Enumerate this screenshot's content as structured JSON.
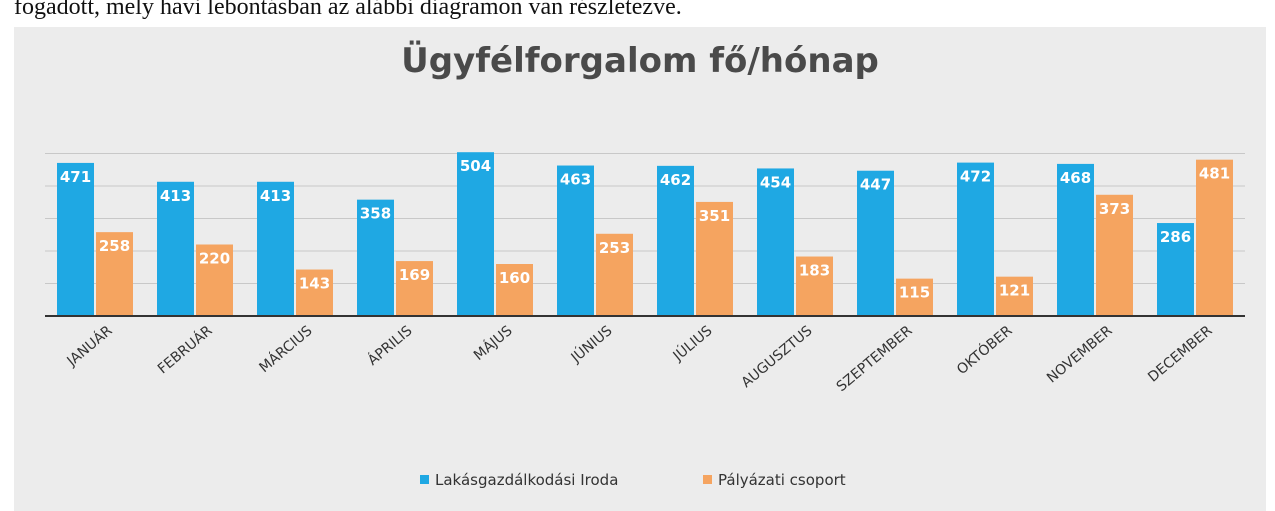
{
  "page_text": "fogadott, mely havi lebontásban az alábbi diagramon van részletezve.",
  "chart_data": {
    "type": "bar",
    "title": "Ügyfélforgalom fő/hónap",
    "categories": [
      "JANUÁR",
      "FEBRUÁR",
      "MÁRCIUS",
      "ÁPRILIS",
      "MÁJUS",
      "JÚNIUS",
      "JÚLIUS",
      "AUGUSZTUS",
      "SZEPTEMBER",
      "OKTÓBER",
      "NOVEMBER",
      "DECEMBER"
    ],
    "series": [
      {
        "name": "Lakásgazdálkodási Iroda",
        "color": "#1fa8e3",
        "values": [
          471,
          413,
          413,
          358,
          504,
          463,
          462,
          454,
          447,
          472,
          468,
          286
        ]
      },
      {
        "name": "Pályázati csoport",
        "color": "#f5a460",
        "values": [
          258,
          220,
          143,
          169,
          160,
          253,
          351,
          183,
          115,
          121,
          373,
          481
        ]
      }
    ],
    "ylim": [
      0,
      500
    ],
    "yticks": [
      0,
      100,
      200,
      300,
      400,
      500
    ],
    "grid": true,
    "legend": "bottom"
  }
}
